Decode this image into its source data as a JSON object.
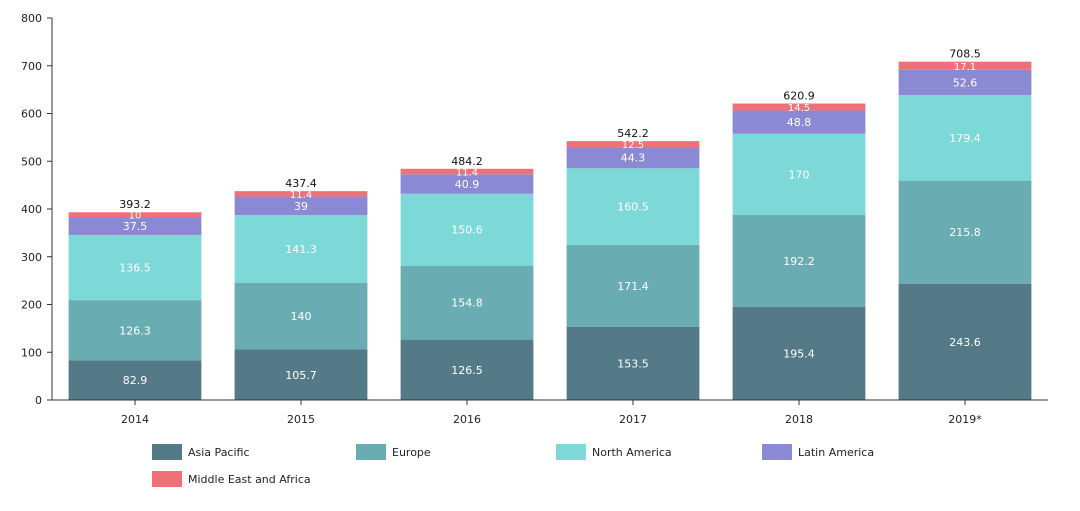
{
  "chart_data": {
    "type": "bar",
    "stacked": true,
    "title": "",
    "xlabel": "",
    "ylabel": "",
    "ylim": [
      0,
      800
    ],
    "yticks": [
      0,
      100,
      200,
      300,
      400,
      500,
      600,
      700,
      800
    ],
    "categories": [
      "2014",
      "2015",
      "2016",
      "2017",
      "2018",
      "2019*"
    ],
    "series": [
      {
        "name": "Asia Pacific",
        "color": "#557a87",
        "values": [
          82.9,
          105.7,
          126.5,
          153.5,
          195.4,
          243.6
        ]
      },
      {
        "name": "Europe",
        "color": "#69acb1",
        "values": [
          126.3,
          140,
          154.8,
          171.4,
          192.2,
          215.8
        ]
      },
      {
        "name": "North America",
        "color": "#7dd8d8",
        "values": [
          136.5,
          141.3,
          150.6,
          160.5,
          170,
          179.4
        ]
      },
      {
        "name": "Latin America",
        "color": "#8b88d4",
        "values": [
          37.5,
          39,
          40.9,
          44.3,
          48.8,
          52.6
        ]
      },
      {
        "name": "Middle East and Africa",
        "color": "#f0707a",
        "values": [
          10,
          11.4,
          11.4,
          12.5,
          14.5,
          17.1
        ]
      }
    ],
    "totals": [
      "393.2",
      "437.4",
      "484.2",
      "542.2",
      "620.9",
      "708.5"
    ],
    "segment_labels": [
      [
        "82.9",
        "105.7",
        "126.5",
        "153.5",
        "195.4",
        "243.6"
      ],
      [
        "126.3",
        "140",
        "154.8",
        "171.4",
        "192.2",
        "215.8"
      ],
      [
        "136.5",
        "141.3",
        "150.6",
        "160.5",
        "170",
        "179.4"
      ],
      [
        "37.5",
        "39",
        "40.9",
        "44.3",
        "48.8",
        "52.6"
      ],
      [
        "10",
        "11.4",
        "11.4",
        "12.5",
        "14.5",
        "17.1"
      ]
    ],
    "legend_position": "bottom"
  }
}
